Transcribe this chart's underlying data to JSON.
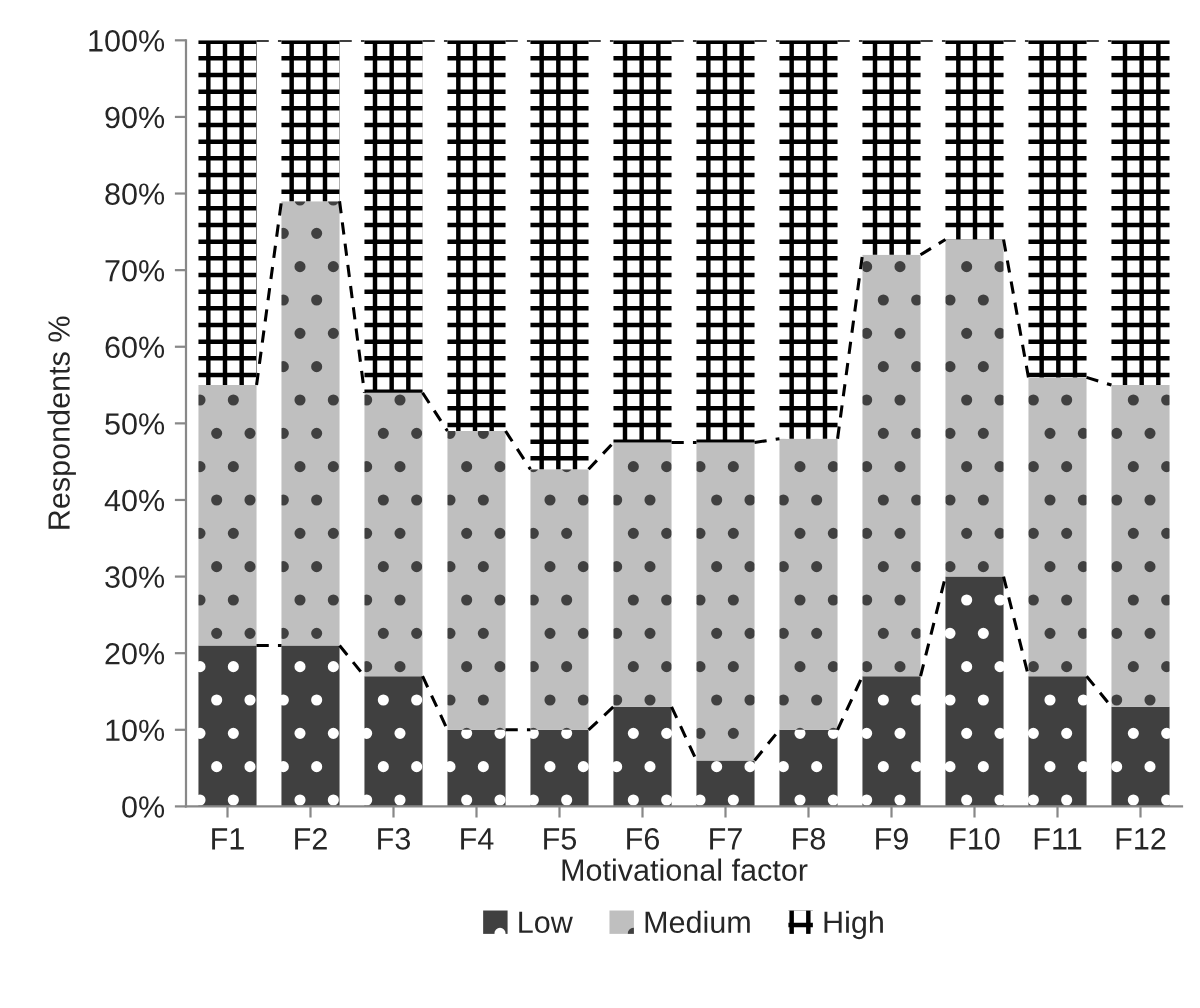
{
  "chart_data": {
    "type": "bar",
    "stacked": true,
    "xlabel": "Motivational factor",
    "ylabel": "Respondents %",
    "categories": [
      "F1",
      "F2",
      "F3",
      "F4",
      "F5",
      "F6",
      "F7",
      "F8",
      "F9",
      "F10",
      "F11",
      "F12"
    ],
    "series": [
      {
        "name": "Low",
        "color": "#404040",
        "values": [
          21,
          21,
          17,
          10,
          10,
          13,
          6,
          10,
          17,
          30,
          17,
          13
        ]
      },
      {
        "name": "Medium",
        "color": "#bfbfbf",
        "values": [
          34,
          58,
          37,
          39,
          34,
          34.5,
          41.5,
          38,
          55,
          44,
          39,
          42
        ]
      },
      {
        "name": "High",
        "color": "#ffffff",
        "values": [
          45,
          21,
          46,
          51,
          56,
          52.5,
          52.5,
          52,
          28,
          26,
          44,
          45
        ]
      }
    ],
    "ylim": [
      0,
      100
    ],
    "yticks": [
      {
        "value": 0,
        "label": "0%"
      },
      {
        "value": 10,
        "label": "10%"
      },
      {
        "value": 20,
        "label": "20%"
      },
      {
        "value": 30,
        "label": "30%"
      },
      {
        "value": 40,
        "label": "40%"
      },
      {
        "value": 50,
        "label": "50%"
      },
      {
        "value": 60,
        "label": "60%"
      },
      {
        "value": 70,
        "label": "70%"
      },
      {
        "value": 80,
        "label": "80%"
      },
      {
        "value": 90,
        "label": "90%"
      },
      {
        "value": 100,
        "label": "100%"
      }
    ],
    "grid": false,
    "legend": "bottom"
  }
}
